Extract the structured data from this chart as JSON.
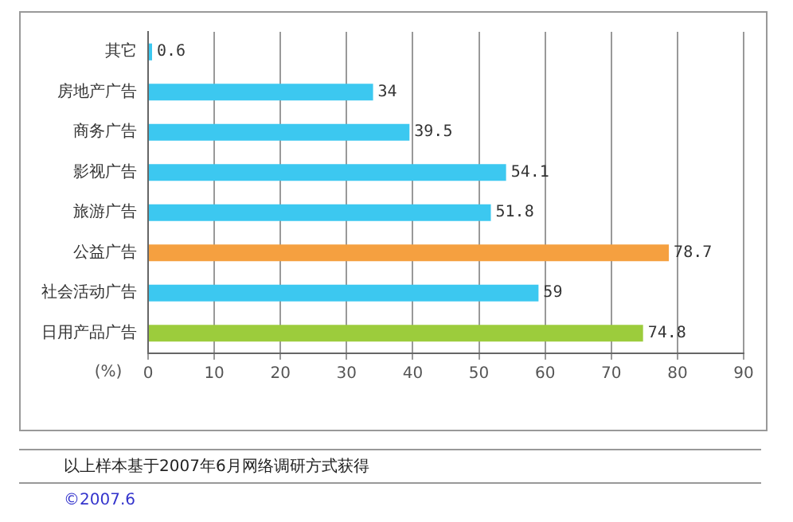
{
  "chart_data": {
    "type": "bar",
    "orientation": "horizontal",
    "categories": [
      "其它",
      "房地产广告",
      "商务广告",
      "影视广告",
      "旅游广告",
      "公益广告",
      "社会活动广告",
      "日用产品广告"
    ],
    "values": [
      0.6,
      34,
      39.5,
      54.1,
      51.8,
      78.7,
      59,
      74.8
    ],
    "colors": [
      "#3cc8f0",
      "#3cc8f0",
      "#3cc8f0",
      "#3cc8f0",
      "#3cc8f0",
      "#f5a040",
      "#3cc8f0",
      "#9ccc3c"
    ],
    "xlim": [
      0,
      90
    ],
    "xticks": [
      0,
      10,
      20,
      30,
      40,
      50,
      60,
      70,
      80,
      90
    ],
    "xlabel": "(%)",
    "grid": "x",
    "data_labels": true,
    "legend": false,
    "annotations": [
      "以上样本基于2007年6月网络调研方式获得",
      "©2007.6"
    ]
  }
}
